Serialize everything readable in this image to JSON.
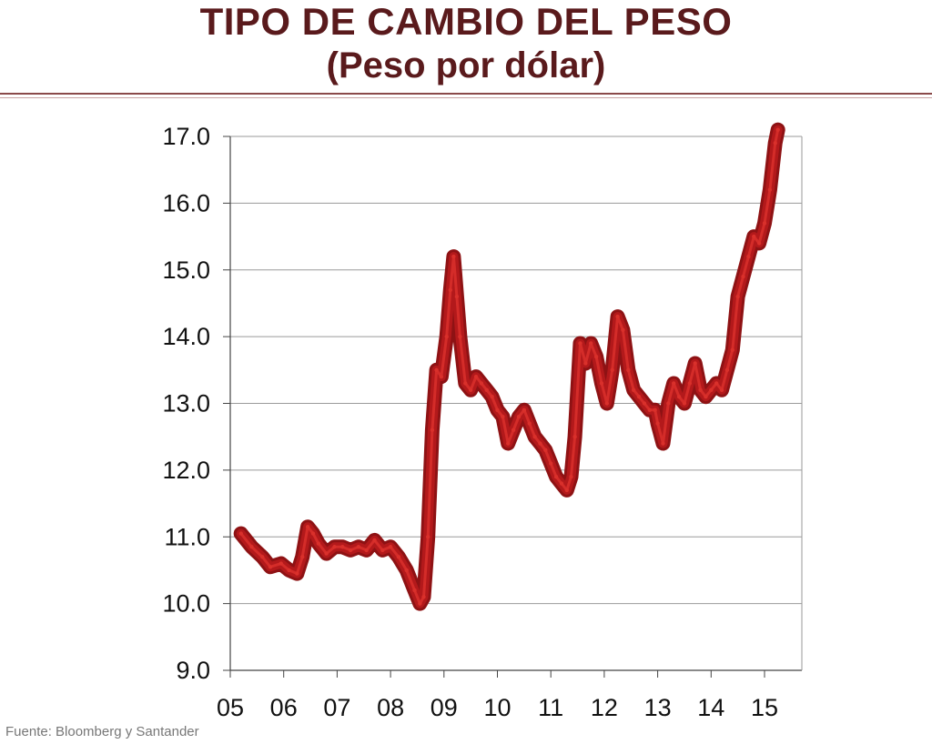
{
  "header": {
    "title_line1": "TIPO DE CAMBIO DEL PESO",
    "title_line2": "(Peso por dólar)"
  },
  "source": "Fuente: Bloomberg y Santander",
  "colors": {
    "title": "#5a1a1c",
    "series": "#b3191b",
    "series_light": "#d9302b",
    "grid": "#9a9a9a",
    "rule": "#8a4a4a"
  },
  "chart_data": {
    "type": "line",
    "title": "",
    "xlabel": "",
    "ylabel": "",
    "ylim": [
      9.0,
      17.0
    ],
    "xlim": [
      2005.0,
      2016.0
    ],
    "y_ticks": [
      "9.0",
      "10.0",
      "11.0",
      "12.0",
      "13.0",
      "14.0",
      "15.0",
      "16.0",
      "17.0"
    ],
    "x_ticks": [
      "05",
      "06",
      "07",
      "08",
      "09",
      "10",
      "11",
      "12",
      "13",
      "14",
      "15"
    ],
    "grid": true,
    "series": [
      {
        "values": [
          [
            2005.2,
            11.05
          ],
          [
            2005.4,
            10.85
          ],
          [
            2005.6,
            10.7
          ],
          [
            2005.75,
            10.55
          ],
          [
            2005.95,
            10.6
          ],
          [
            2006.1,
            10.5
          ],
          [
            2006.25,
            10.45
          ],
          [
            2006.35,
            10.7
          ],
          [
            2006.45,
            11.15
          ],
          [
            2006.55,
            11.05
          ],
          [
            2006.65,
            10.9
          ],
          [
            2006.8,
            10.75
          ],
          [
            2006.95,
            10.85
          ],
          [
            2007.1,
            10.85
          ],
          [
            2007.25,
            10.8
          ],
          [
            2007.4,
            10.85
          ],
          [
            2007.55,
            10.8
          ],
          [
            2007.7,
            10.95
          ],
          [
            2007.85,
            10.8
          ],
          [
            2008.0,
            10.85
          ],
          [
            2008.15,
            10.7
          ],
          [
            2008.3,
            10.5
          ],
          [
            2008.45,
            10.2
          ],
          [
            2008.55,
            10.0
          ],
          [
            2008.62,
            10.1
          ],
          [
            2008.7,
            11.0
          ],
          [
            2008.78,
            12.6
          ],
          [
            2008.86,
            13.5
          ],
          [
            2008.95,
            13.4
          ],
          [
            2009.05,
            14.0
          ],
          [
            2009.12,
            14.7
          ],
          [
            2009.18,
            15.2
          ],
          [
            2009.24,
            14.6
          ],
          [
            2009.3,
            14.0
          ],
          [
            2009.4,
            13.3
          ],
          [
            2009.5,
            13.2
          ],
          [
            2009.6,
            13.4
          ],
          [
            2009.7,
            13.3
          ],
          [
            2009.8,
            13.2
          ],
          [
            2009.9,
            13.1
          ],
          [
            2010.0,
            12.9
          ],
          [
            2010.1,
            12.8
          ],
          [
            2010.2,
            12.4
          ],
          [
            2010.3,
            12.6
          ],
          [
            2010.4,
            12.8
          ],
          [
            2010.5,
            12.9
          ],
          [
            2010.6,
            12.7
          ],
          [
            2010.7,
            12.5
          ],
          [
            2010.8,
            12.4
          ],
          [
            2010.9,
            12.3
          ],
          [
            2011.0,
            12.1
          ],
          [
            2011.1,
            11.9
          ],
          [
            2011.2,
            11.8
          ],
          [
            2011.3,
            11.7
          ],
          [
            2011.38,
            11.9
          ],
          [
            2011.45,
            12.5
          ],
          [
            2011.55,
            13.9
          ],
          [
            2011.65,
            13.6
          ],
          [
            2011.75,
            13.9
          ],
          [
            2011.85,
            13.7
          ],
          [
            2011.95,
            13.3
          ],
          [
            2012.05,
            13.0
          ],
          [
            2012.15,
            13.5
          ],
          [
            2012.25,
            14.3
          ],
          [
            2012.35,
            14.1
          ],
          [
            2012.45,
            13.5
          ],
          [
            2012.55,
            13.2
          ],
          [
            2012.65,
            13.1
          ],
          [
            2012.75,
            13.0
          ],
          [
            2012.85,
            12.9
          ],
          [
            2012.95,
            12.9
          ],
          [
            2013.0,
            12.7
          ],
          [
            2013.1,
            12.4
          ],
          [
            2013.2,
            13.0
          ],
          [
            2013.3,
            13.3
          ],
          [
            2013.4,
            13.1
          ],
          [
            2013.5,
            13.0
          ],
          [
            2013.6,
            13.3
          ],
          [
            2013.7,
            13.6
          ],
          [
            2013.8,
            13.2
          ],
          [
            2013.9,
            13.1
          ],
          [
            2014.0,
            13.2
          ],
          [
            2014.1,
            13.3
          ],
          [
            2014.2,
            13.2
          ],
          [
            2014.3,
            13.5
          ],
          [
            2014.4,
            13.8
          ],
          [
            2014.5,
            14.6
          ],
          [
            2014.6,
            14.9
          ],
          [
            2014.7,
            15.2
          ],
          [
            2014.8,
            15.5
          ],
          [
            2014.9,
            15.4
          ],
          [
            2015.0,
            15.7
          ],
          [
            2015.1,
            16.2
          ],
          [
            2015.2,
            16.9
          ],
          [
            2015.25,
            17.1
          ]
        ]
      }
    ]
  }
}
